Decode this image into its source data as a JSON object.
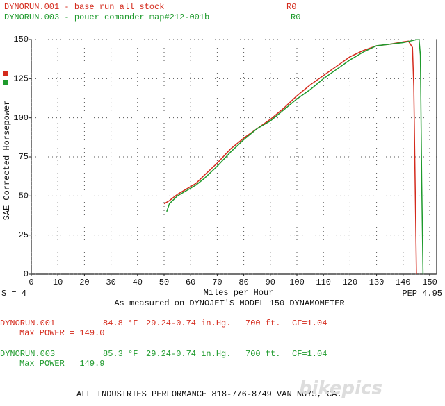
{
  "chart_data": {
    "type": "line",
    "x_label": "Miles per Hour",
    "y_label": "SAE Corrected Horsepower",
    "xlim": [
      0,
      150
    ],
    "ylim": [
      0,
      150
    ],
    "xticks": [
      0,
      10,
      20,
      30,
      40,
      50,
      60,
      70,
      80,
      90,
      100,
      110,
      120,
      130,
      140,
      150
    ],
    "yticks": [
      0,
      25,
      50,
      75,
      100,
      125,
      150
    ],
    "grid": true,
    "smoothing": "S = 4",
    "pep": "PEP 4.95",
    "caption": "As measured on DYNOJET'S MODEL 150 DYNAMOMETER",
    "series": [
      {
        "name": "DYNORUN.001 - base run all stock",
        "code": "R0",
        "color": "#d42a1c",
        "x": [
          50,
          52,
          55,
          60,
          62,
          65,
          70,
          75,
          80,
          85,
          90,
          95,
          100,
          105,
          110,
          115,
          120,
          125,
          130,
          135,
          140,
          142,
          143.5,
          144,
          144.5,
          145
        ],
        "values": [
          45,
          47,
          51,
          56,
          58,
          63,
          71,
          80,
          87,
          93,
          99,
          106,
          114,
          121,
          127,
          133,
          139,
          143,
          146,
          147,
          148.5,
          149,
          145,
          120,
          60,
          0
        ]
      },
      {
        "name": "DYNORUN.003 - pouer comander map#212-001b",
        "code": "R0",
        "color": "#1e9a2c",
        "x": [
          51,
          52,
          55,
          60,
          62,
          65,
          70,
          75,
          80,
          85,
          90,
          95,
          100,
          105,
          110,
          115,
          120,
          125,
          130,
          135,
          140,
          145,
          146,
          146.5,
          147,
          147.5
        ],
        "values": [
          40,
          45,
          50,
          55,
          57,
          61,
          69,
          78,
          86,
          93,
          98,
          105,
          112,
          118,
          125,
          131,
          137,
          142,
          146,
          147,
          148,
          149.9,
          149.9,
          140,
          60,
          0
        ]
      }
    ]
  },
  "runs": [
    {
      "name": "DYNORUN.001",
      "temp": "84.8 °F",
      "pressure": "29.24-0.74 in.Hg.",
      "altitude": "700 ft.",
      "cf": "CF=1.04",
      "max_power": "Max POWER = 149.0",
      "color": "#d42a1c"
    },
    {
      "name": "DYNORUN.003",
      "temp": "85.3 °F",
      "pressure": "29.24-0.74 in.Hg.",
      "altitude": "700 ft.",
      "cf": "CF=1.04",
      "max_power": "Max POWER = 149.9",
      "color": "#1e9a2c"
    }
  ],
  "footer": "ALL INDUSTRIES PERFORMANCE 818-776-8749 VAN NUYS, CA.",
  "watermark": "bikepics"
}
